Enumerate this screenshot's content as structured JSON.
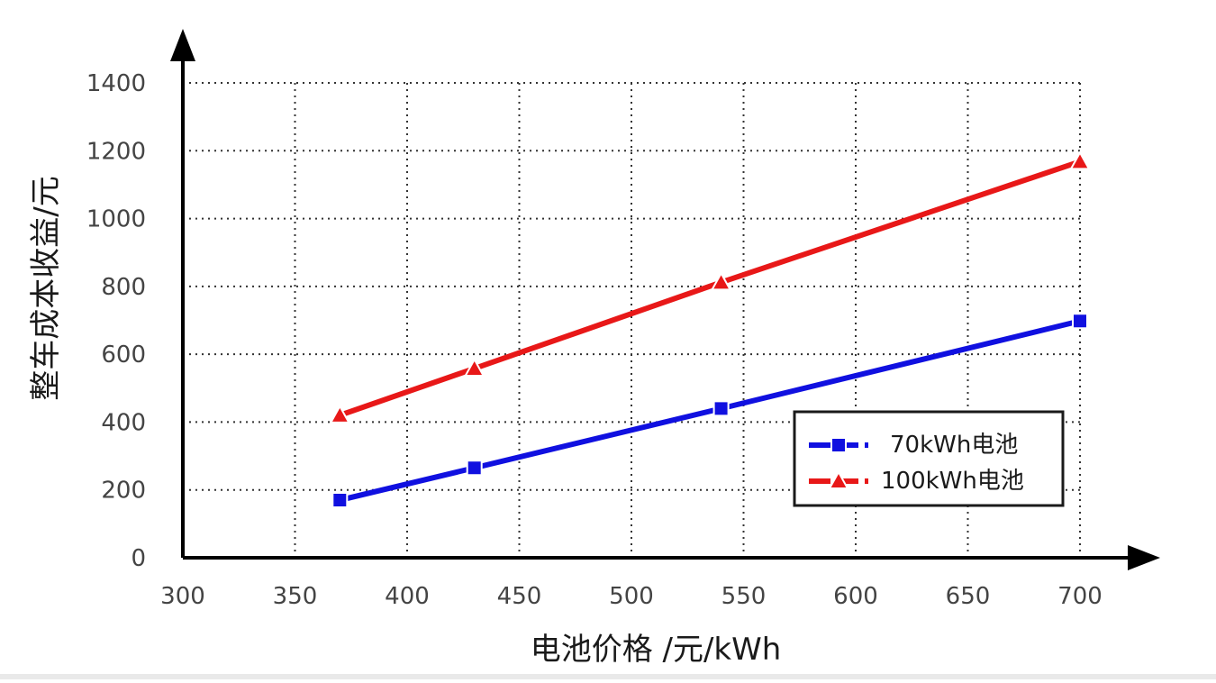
{
  "chart_data": {
    "type": "line",
    "xlabel": "电池价格 /元/kWh",
    "ylabel": "整车成本收益/元",
    "xlim": [
      300,
      700
    ],
    "ylim": [
      0,
      1400
    ],
    "xticks": [
      300,
      350,
      400,
      450,
      500,
      550,
      600,
      650,
      700
    ],
    "yticks": [
      0,
      200,
      400,
      600,
      800,
      1000,
      1200,
      1400
    ],
    "grid": true,
    "legend_position": "bottom-right",
    "series": [
      {
        "name": "70kWh电池",
        "color": "#1010e0",
        "marker": "square",
        "x": [
          370,
          430,
          540,
          700
        ],
        "y": [
          170,
          265,
          440,
          698
        ]
      },
      {
        "name": "100kWh电池",
        "color": "#e81818",
        "marker": "triangle",
        "x": [
          370,
          430,
          540,
          700
        ],
        "y": [
          420,
          558,
          812,
          1168
        ]
      }
    ]
  }
}
